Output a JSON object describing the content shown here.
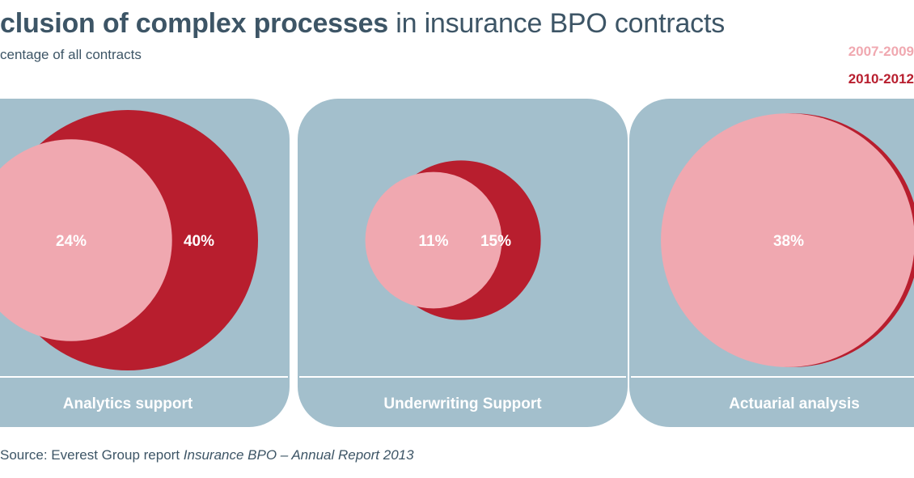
{
  "title": {
    "bold_part": "clusion of complex processes",
    "regular_part": " in insurance BPO contracts"
  },
  "subtitle": "centage of all contracts",
  "legend": [
    {
      "label": "2007-2009",
      "color": "#f0a8b0"
    },
    {
      "label": "2010-2012",
      "color": "#b81e2e"
    }
  ],
  "colors": {
    "panel": "#a3bfcc",
    "early": "#f0a8b0",
    "late": "#b81e2e",
    "label_text": "#ffffff"
  },
  "chart_data": {
    "type": "bubble",
    "unit": "%",
    "series": [
      {
        "name": "2007-2009",
        "values": [
          24,
          11,
          38
        ]
      },
      {
        "name": "2010-2012",
        "values": [
          40,
          15,
          38
        ]
      }
    ],
    "categories": [
      "Analytics support",
      "Underwriting Support",
      "Actuarial analysis"
    ],
    "labels": [
      {
        "early": "24%",
        "late": "40%"
      },
      {
        "early": "11%",
        "late": "15%"
      },
      {
        "early": "38%",
        "late": ""
      }
    ]
  },
  "source": {
    "prefix": "Source: Everest Group report ",
    "italic": "Insurance BPO – Annual Report 2013"
  }
}
